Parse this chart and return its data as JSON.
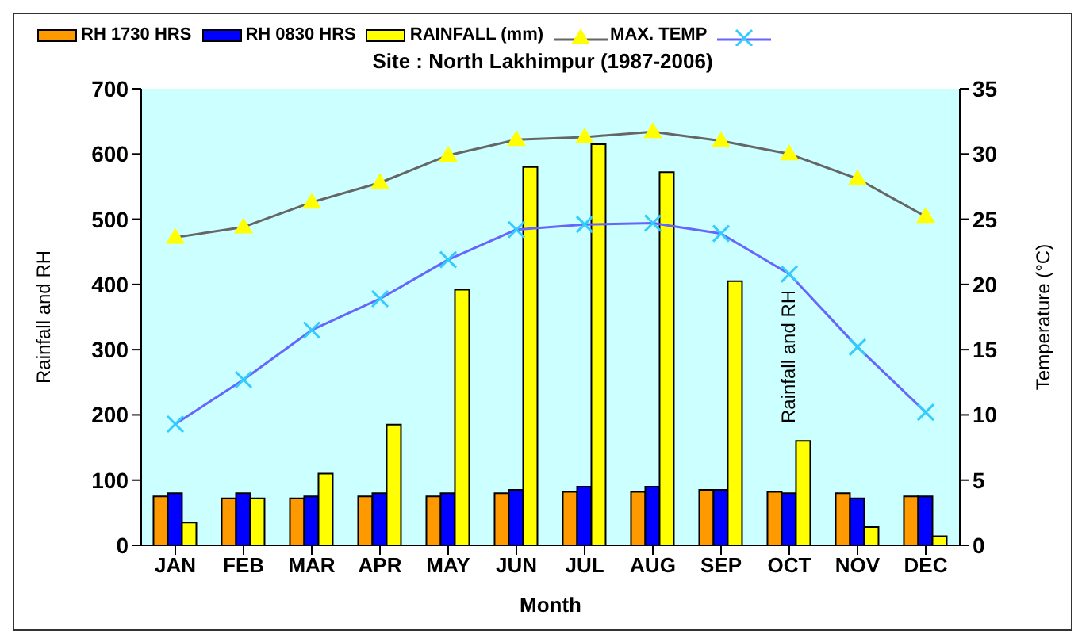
{
  "chart_data": {
    "type": "bar",
    "title": "Site : North Lakhimpur (1987-2006)",
    "xlabel": "Month",
    "ylabel": "Rainfall and RH",
    "y2label": "Temperature (°C)",
    "categories": [
      "JAN",
      "FEB",
      "MAR",
      "APR",
      "MAY",
      "JUN",
      "JUL",
      "AUG",
      "SEP",
      "OCT",
      "NOV",
      "DEC"
    ],
    "series": [
      {
        "name": "RH 1730 HRS",
        "color": "#ff9900",
        "values": [
          75,
          72,
          72,
          75,
          75,
          80,
          82,
          82,
          85,
          82,
          80,
          75
        ]
      },
      {
        "name": "RH 0830 HRS",
        "color": "#0000ff",
        "values": [
          80,
          80,
          75,
          80,
          80,
          85,
          90,
          90,
          85,
          80,
          72,
          75
        ]
      },
      {
        "name": "RAINFALL (mm)",
        "color": "#ffff00",
        "values": [
          35,
          72,
          110,
          185,
          392,
          580,
          615,
          572,
          405,
          160,
          28,
          14
        ]
      },
      {
        "name": "MAX. TEMP",
        "type": "line",
        "axis": "y2",
        "marker": "triangle",
        "color": "#666666",
        "colors": [
          "#ffff00",
          "#ffff00",
          "#ffff00",
          "#ffff00",
          "#ffff00",
          "#ffff00",
          "#ffff00",
          "#ffff00",
          "#ffff00",
          "#ffff00",
          "#ffff00",
          "#ffff00"
        ],
        "values": [
          23.6,
          24.4,
          26.3,
          27.8,
          29.9,
          31.1,
          31.3,
          31.7,
          31.0,
          30.0,
          28.1,
          25.2
        ]
      },
      {
        "type": "line",
        "axis": "y2",
        "marker": "cross",
        "color": "#6666ff",
        "colors": [
          "#33ccff",
          "#33ccff",
          "#33ccff",
          "#33ccff",
          "#33ccff",
          "#33ccff",
          "#33ccff",
          "#33ccff",
          "#33ccff",
          "#33ccff",
          "#33ccff",
          "#33ccff"
        ],
        "values": [
          9.3,
          12.7,
          16.5,
          18.9,
          21.9,
          24.2,
          24.6,
          24.7,
          23.9,
          20.8,
          15.2,
          10.2
        ]
      }
    ],
    "ylim": [
      0,
      700
    ],
    "yticks": [
      0,
      100,
      200,
      300,
      400,
      500,
      600,
      700
    ],
    "y2lim": [
      0,
      35
    ],
    "y2ticks": [
      0,
      5,
      10,
      15,
      20,
      25,
      30,
      35
    ],
    "annotations": [
      "Rainfall and RH"
    ],
    "legend": "top",
    "grid": false
  }
}
